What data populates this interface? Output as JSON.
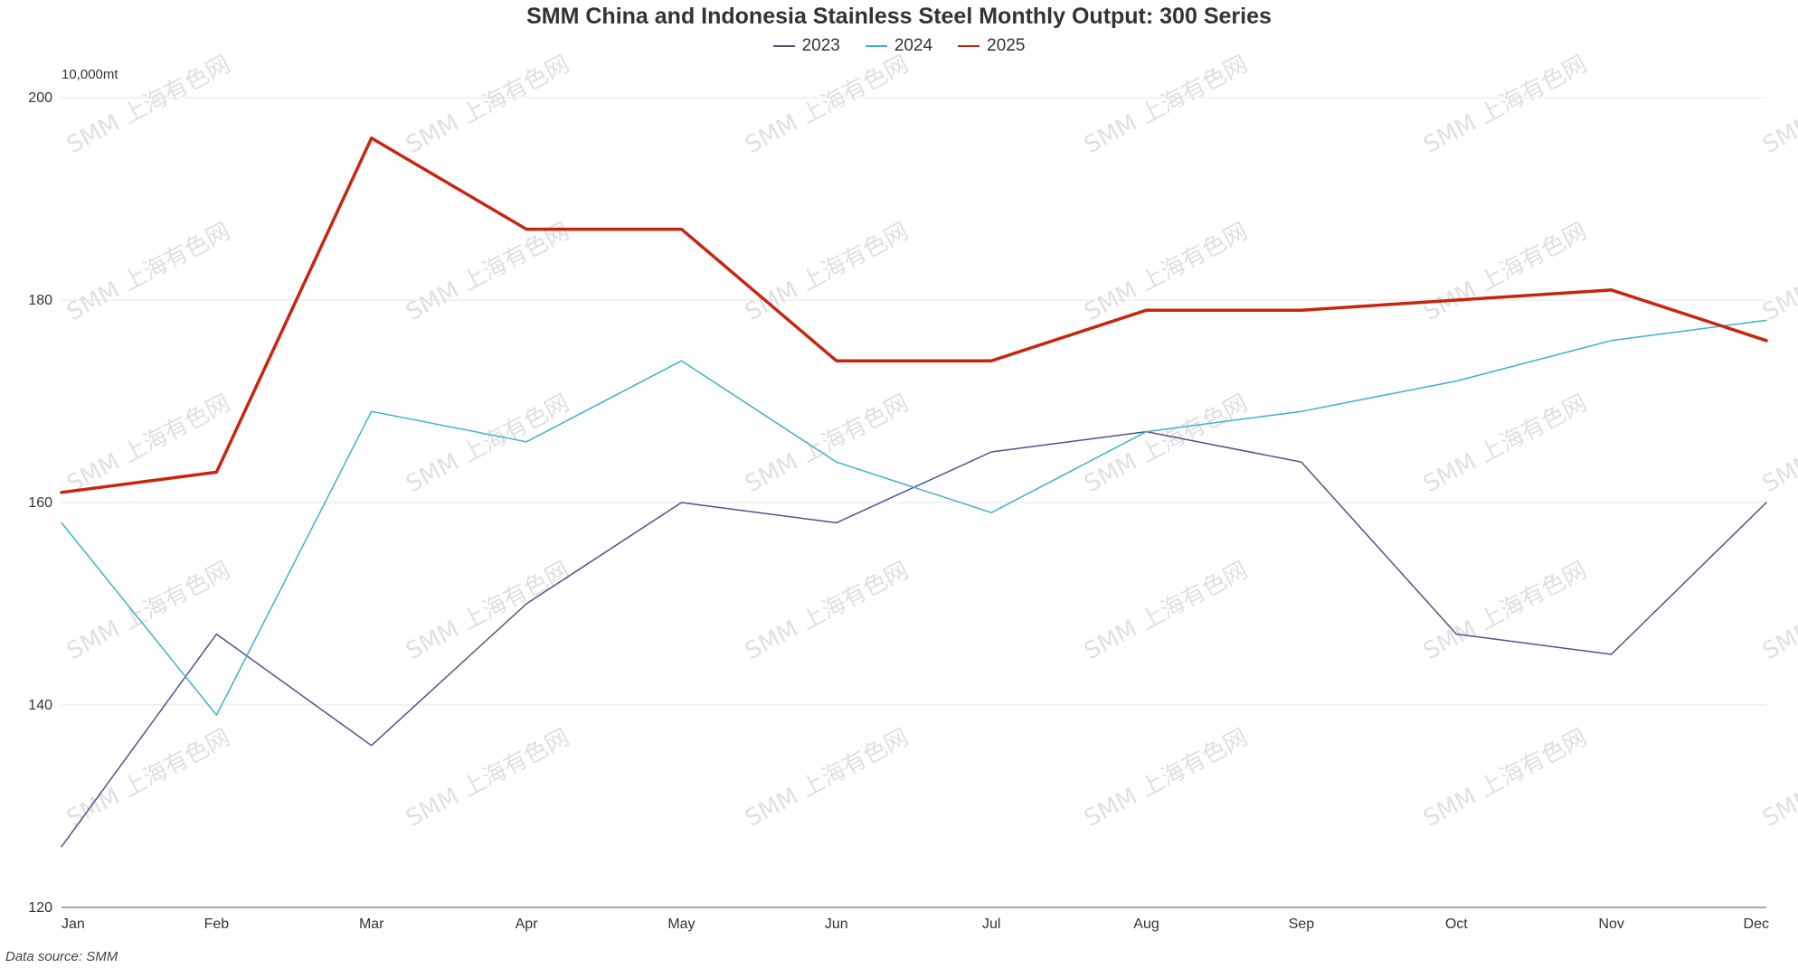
{
  "chart_data": {
    "type": "line",
    "title": "SMM China and Indonesia Stainless Steel Monthly Output: 300 Series",
    "unit_label": "10,000mt",
    "source_note": "Data source:  SMM",
    "watermark_text": "SMM 上海有色网",
    "categories": [
      "Jan",
      "Feb",
      "Mar",
      "Apr",
      "May",
      "Jun",
      "Jul",
      "Aug",
      "Sep",
      "Oct",
      "Nov",
      "Dec"
    ],
    "ylim": [
      120,
      200
    ],
    "yticks": [
      120,
      140,
      160,
      180,
      200
    ],
    "grid": true,
    "legend_position": "top-center",
    "series": [
      {
        "name": "2023",
        "color": "#4a5687",
        "width": 1.5,
        "values": [
          126,
          147,
          136,
          150,
          160,
          158,
          165,
          167,
          164,
          147,
          145,
          160
        ]
      },
      {
        "name": "2024",
        "color": "#3fb1c8",
        "width": 1.5,
        "values": [
          158,
          139,
          169,
          166,
          174,
          164,
          159,
          167,
          169,
          172,
          176,
          178
        ]
      },
      {
        "name": "2025",
        "color": "#c8250f",
        "width": 3.5,
        "values": [
          161,
          163,
          196,
          187,
          187,
          174,
          174,
          179,
          179,
          180,
          181,
          176
        ]
      }
    ]
  }
}
